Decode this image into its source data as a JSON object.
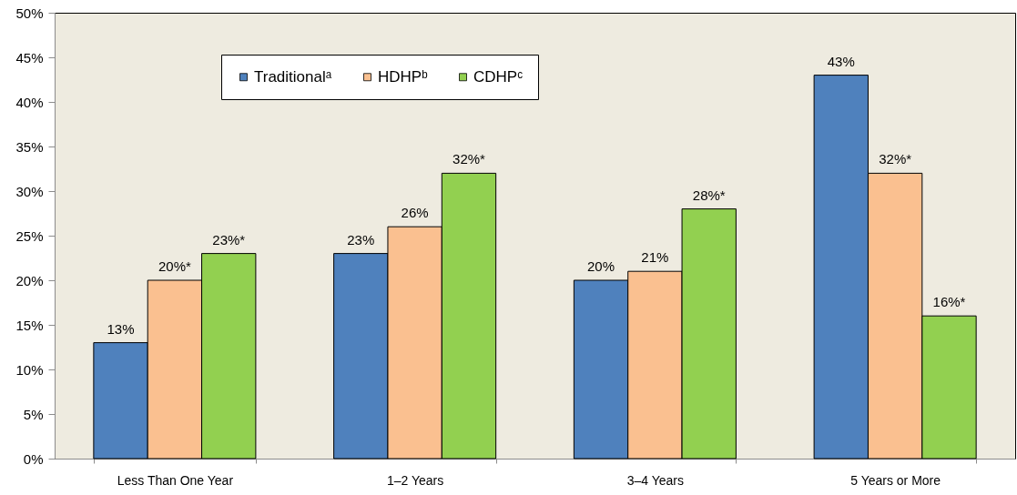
{
  "chart_data": {
    "type": "bar",
    "categories": [
      "Less Than One Year",
      "1–2 Years",
      "3–4 Years",
      "5 Years or More"
    ],
    "series": [
      {
        "name": "Traditionalᵃ",
        "color": "#4f81bd",
        "values": [
          13,
          23,
          20,
          43
        ],
        "value_labels": [
          "13%",
          "23%",
          "20%",
          "43%"
        ]
      },
      {
        "name": "HDHPᵇ",
        "color": "#fac090",
        "values": [
          20,
          26,
          21,
          32
        ],
        "value_labels": [
          "20%*",
          "26%",
          "21%",
          "32%*"
        ]
      },
      {
        "name": "CDHPᶜ",
        "color": "#92d050",
        "values": [
          23,
          32,
          28,
          16
        ],
        "value_labels": [
          "23%*",
          "32%*",
          "28%*",
          "16%*"
        ]
      }
    ],
    "ylim": [
      0,
      50
    ],
    "yticks": [
      {
        "value": 0,
        "label": "0%"
      },
      {
        "value": 5,
        "label": "5%"
      },
      {
        "value": 10,
        "label": "10%"
      },
      {
        "value": 15,
        "label": "15%"
      },
      {
        "value": 20,
        "label": "20%"
      },
      {
        "value": 25,
        "label": "25%"
      },
      {
        "value": 30,
        "label": "30%"
      },
      {
        "value": 35,
        "label": "35%"
      },
      {
        "value": 40,
        "label": "40%"
      },
      {
        "value": 45,
        "label": "45%"
      },
      {
        "value": 50,
        "label": "50%"
      }
    ],
    "grid": false,
    "legend": "top left"
  }
}
